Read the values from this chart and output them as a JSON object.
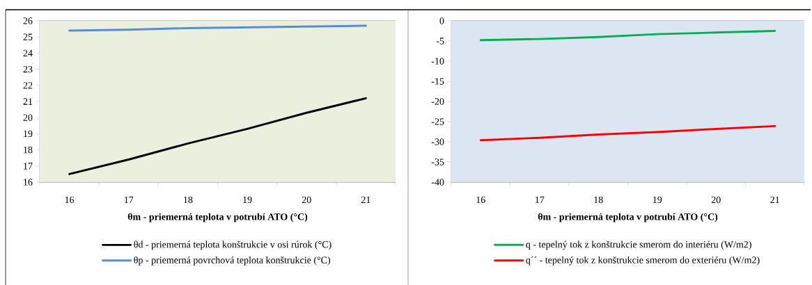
{
  "chart_data": [
    {
      "type": "line",
      "xlabel": "θm - priemerná teplota v potrubí ATO  (°C)",
      "categories": [
        "16",
        "17",
        "18",
        "19",
        "20",
        "21"
      ],
      "ylim": [
        16,
        26
      ],
      "yticks": [
        16,
        17,
        18,
        19,
        20,
        21,
        22,
        23,
        24,
        25,
        26
      ],
      "grid": "y",
      "legend": "bottom",
      "marker": "none",
      "series": [
        {
          "name": "θd  - priemerná teplota konštrukcie v osi rúrok (°C)",
          "color": "#000000",
          "values": [
            16.5,
            17.4,
            18.4,
            19.3,
            20.3,
            21.2
          ]
        },
        {
          "name": "θp  - priemerná povrchová teplota konštrukcie (°C)",
          "color": "#558ed5",
          "values": [
            25.4,
            25.45,
            25.55,
            25.6,
            25.65,
            25.7
          ]
        }
      ]
    },
    {
      "type": "line",
      "xlabel": "θm - priemerná teplota v potrubí ATO  (°C)",
      "categories": [
        "16",
        "17",
        "18",
        "19",
        "20",
        "21"
      ],
      "ylim": [
        -40,
        0
      ],
      "yticks": [
        -40,
        -35,
        -30,
        -25,
        -20,
        -15,
        -10,
        -5,
        0
      ],
      "grid": "y",
      "legend": "bottom",
      "marker": "none",
      "series": [
        {
          "name": "q - tepelný tok z konštrukcie smerom do interiéru (W/m2)",
          "color": "#00b050",
          "values": [
            -4.8,
            -4.5,
            -4.0,
            -3.3,
            -2.9,
            -2.5
          ]
        },
        {
          "name": "q´´ - tepelný tok z konštrukcie smerom do exteriéru (W/m2)",
          "color": "#ff0000",
          "values": [
            -29.6,
            -29.0,
            -28.2,
            -27.6,
            -26.8,
            -26.1
          ]
        }
      ]
    }
  ]
}
